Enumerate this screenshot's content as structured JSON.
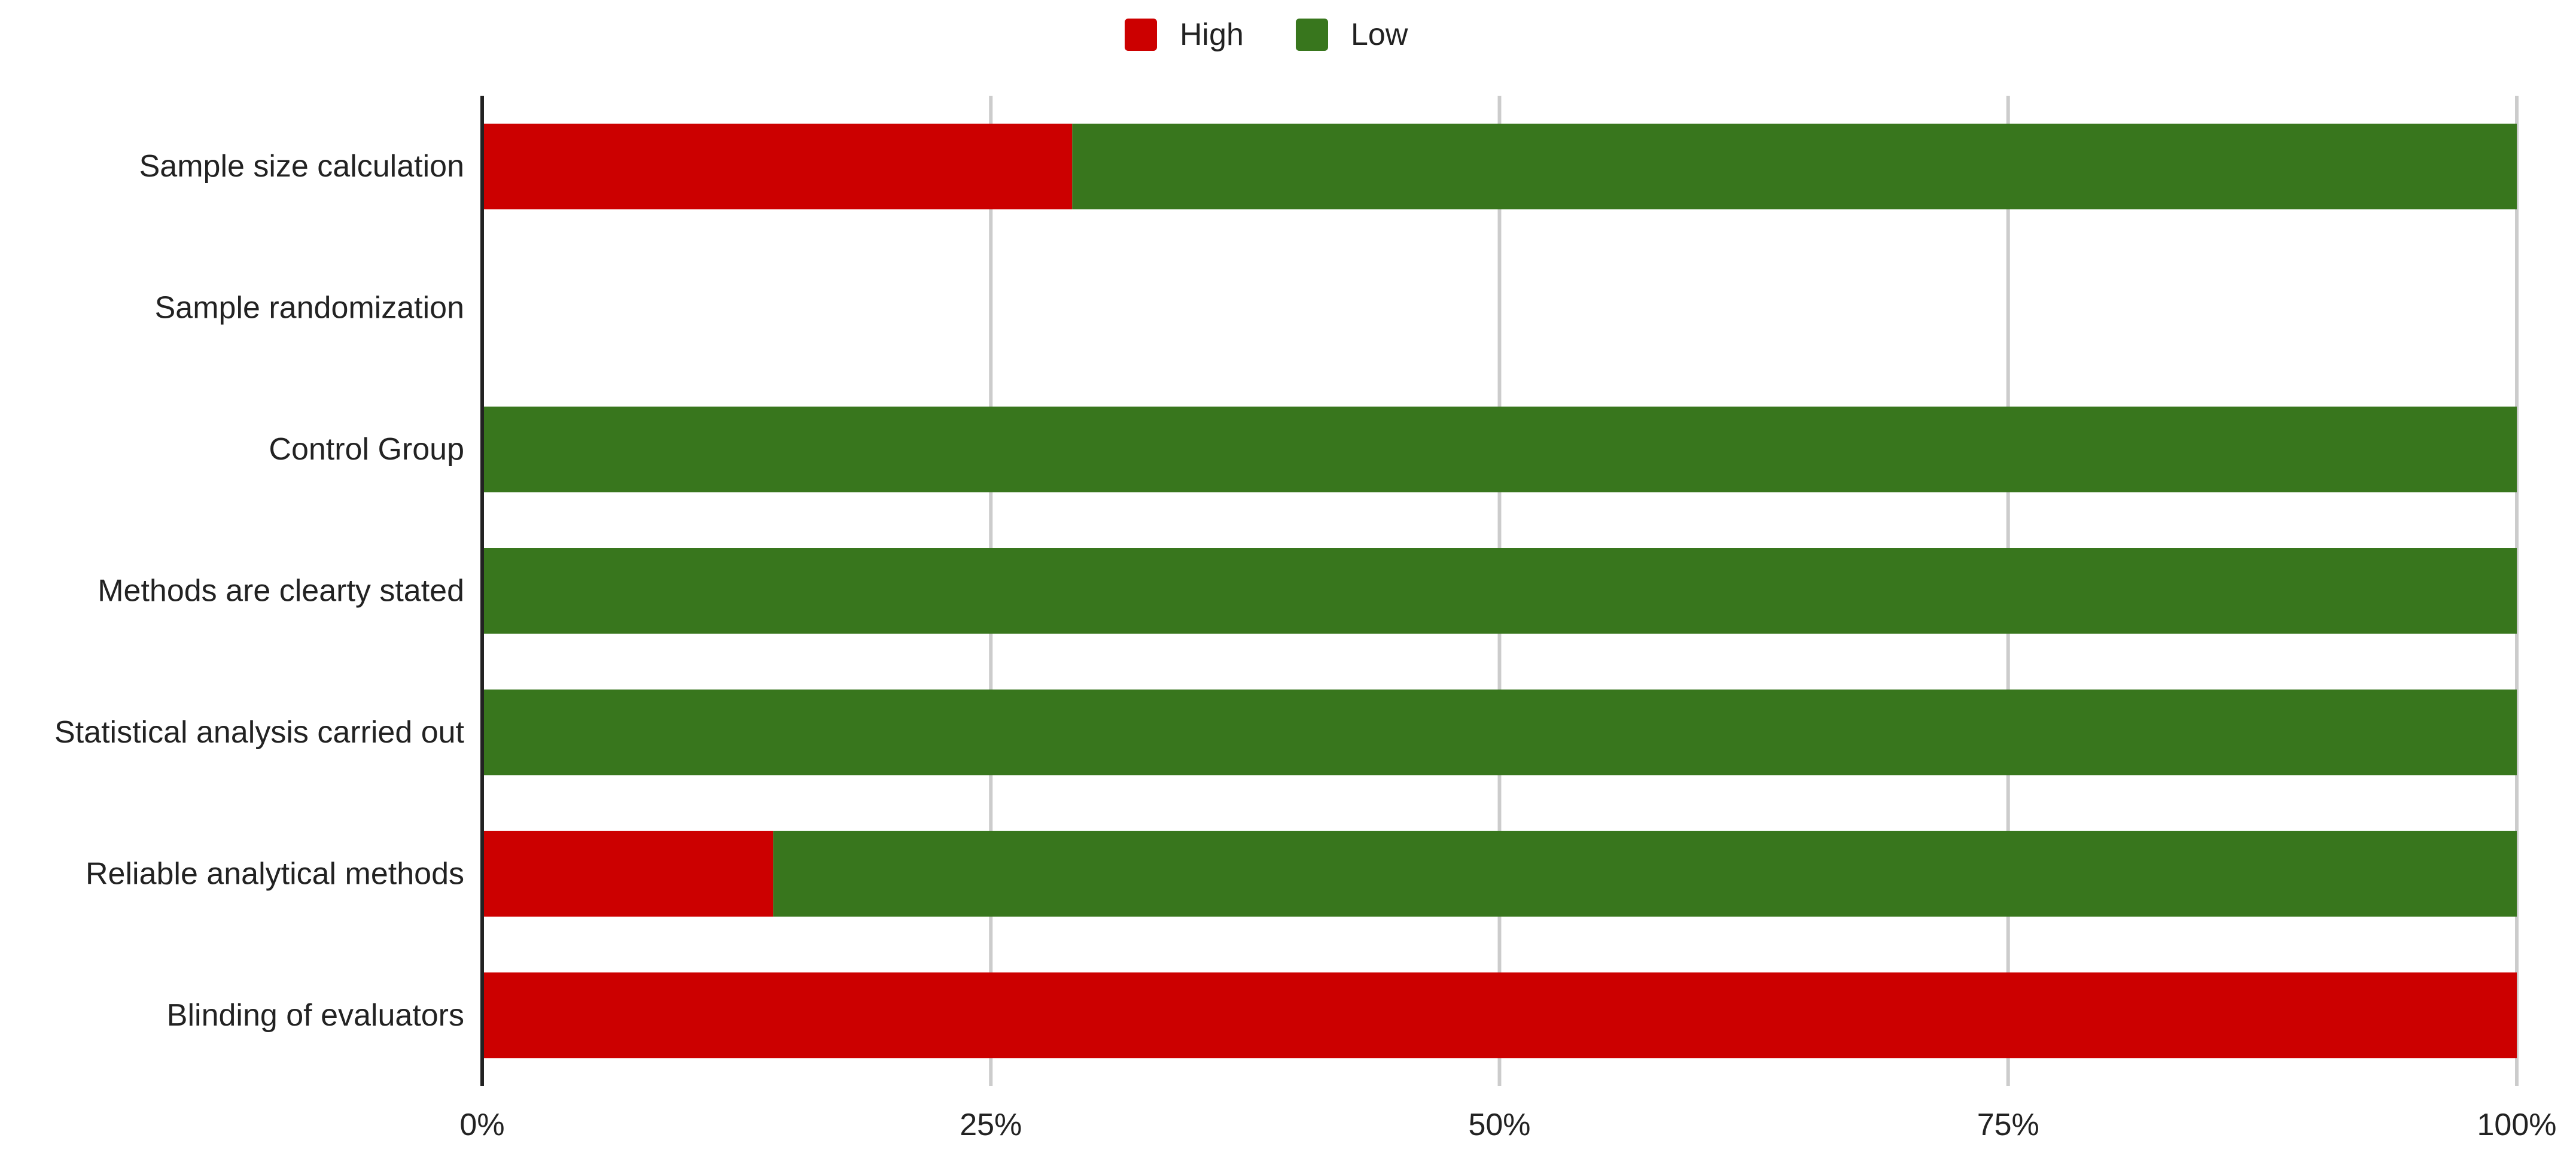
{
  "chart_data": {
    "type": "bar",
    "orientation": "horizontal",
    "stacked": true,
    "value_format": "percent",
    "categories": [
      "Sample size calculation",
      "Sample randomization",
      "Control Group",
      "Methods are clearty stated",
      "Statistical analysis carried out",
      "Reliable analytical methods",
      "Blinding of evaluators"
    ],
    "series": [
      {
        "name": "High",
        "color": "#cc0000",
        "values": [
          29,
          0,
          0,
          0,
          0,
          14.3,
          100
        ]
      },
      {
        "name": "Low",
        "color": "#38761d",
        "values": [
          71,
          0,
          100,
          100,
          100,
          85.7,
          0
        ]
      }
    ],
    "xlim": [
      0,
      100
    ],
    "x_ticks": [
      0,
      25,
      50,
      75,
      100
    ],
    "x_tick_labels": [
      "0%",
      "25%",
      "50%",
      "75%",
      "100%"
    ],
    "grid": true,
    "legend_position": "top-center",
    "title": "",
    "xlabel": "",
    "ylabel": ""
  }
}
